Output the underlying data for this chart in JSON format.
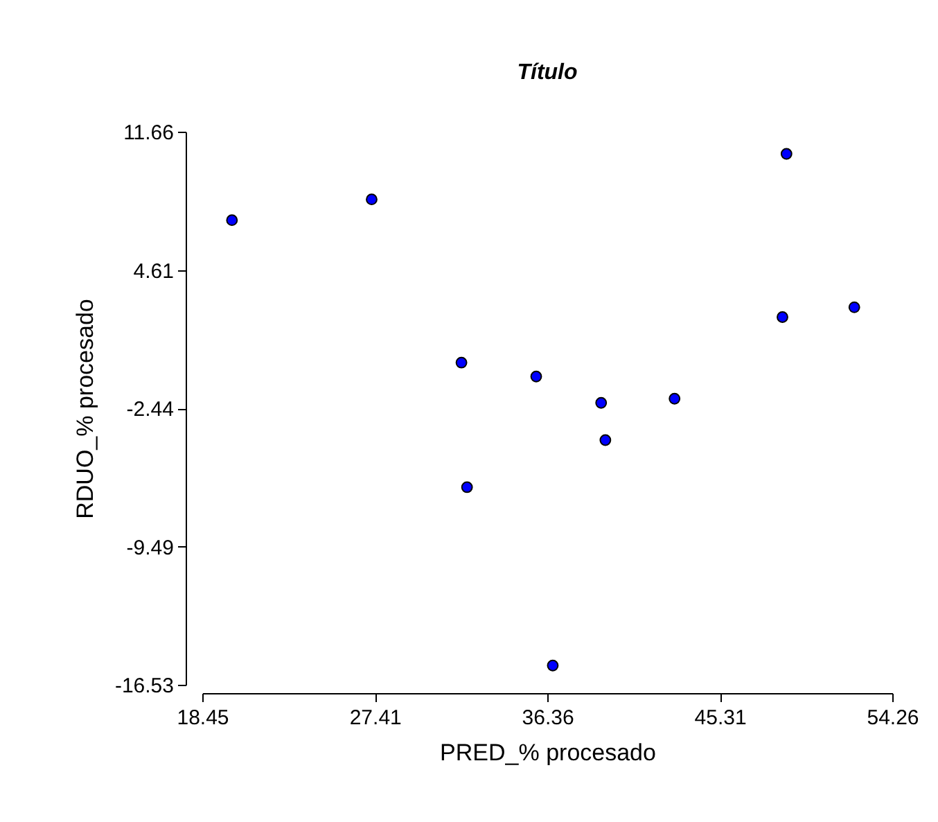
{
  "chart_data": {
    "type": "scatter",
    "title": "Título",
    "xlabel": "PRED_% procesado",
    "ylabel": "RDUO_% procesado",
    "x": [
      19.99,
      27.24,
      31.9,
      32.19,
      35.78,
      36.64,
      39.15,
      39.37,
      42.96,
      48.56,
      48.77,
      52.29
    ],
    "series": [
      {
        "color": "#0000ff",
        "values": [
          7.15,
          8.21,
          -0.11,
          -6.46,
          -0.82,
          -15.55,
          -2.16,
          -4.06,
          -1.95,
          2.21,
          10.53,
          2.71
        ]
      }
    ],
    "xlim": [
      18.45,
      54.26
    ],
    "xticks": [
      18.45,
      27.41,
      36.36,
      45.31,
      54.26
    ],
    "ylim": [
      -16.53,
      11.66
    ],
    "yticks": [
      11.66,
      4.61,
      -2.44,
      -9.49,
      -16.53
    ],
    "marker": "circle",
    "grid": false,
    "legend": false
  }
}
